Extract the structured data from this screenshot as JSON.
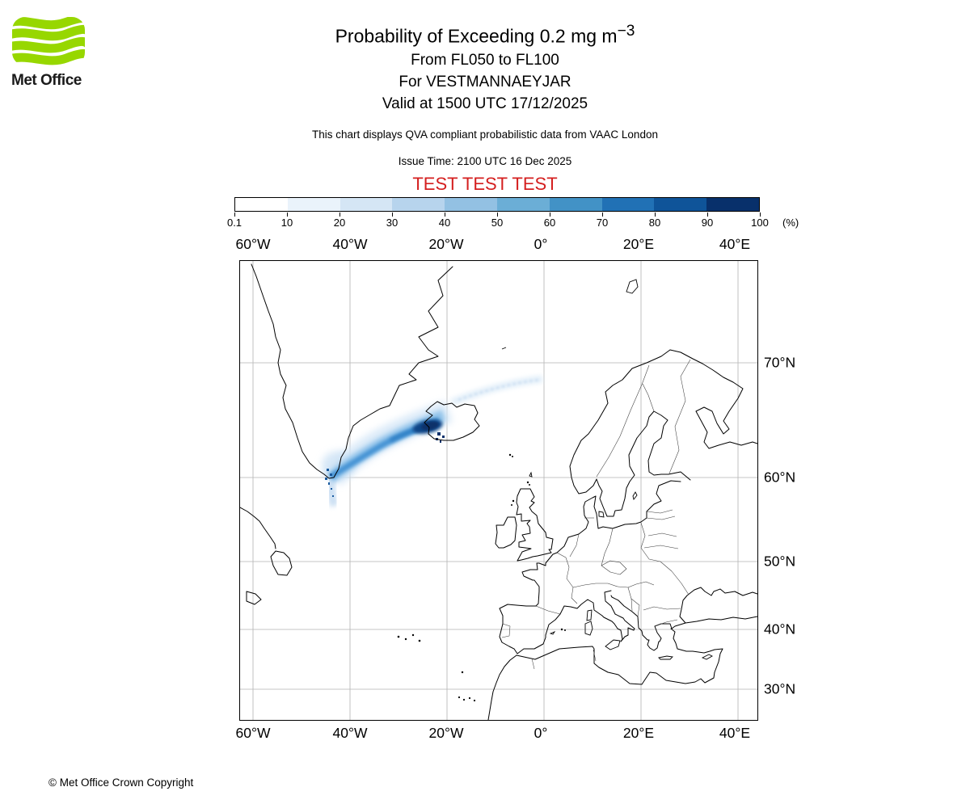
{
  "logo": {
    "text": "Met Office"
  },
  "header": {
    "title": "Probability of Exceeding 0.2 mg m",
    "title_sup": "−3",
    "line2": "From FL050 to FL100",
    "line3": "For VESTMANNAEYJAR",
    "line4": "Valid at 1500 UTC 17/12/2025",
    "qva_note": "This chart displays QVA compliant probabilistic data from VAAC London",
    "issue_time": "Issue Time: 2100 UTC 16 Dec 2025",
    "test_banner": "TEST TEST TEST"
  },
  "colorbar": {
    "tick_labels": [
      "0.1",
      "10",
      "20",
      "30",
      "40",
      "50",
      "60",
      "70",
      "80",
      "90",
      "100"
    ],
    "unit_label": "(%)",
    "segment_colors": [
      "#ffffff",
      "#eaf3fb",
      "#d5e6f5",
      "#b7d4ed",
      "#93c1e3",
      "#6baed6",
      "#4292c6",
      "#2171b5",
      "#0f5499",
      "#08306b"
    ]
  },
  "map": {
    "x_tick_labels": [
      "60°W",
      "40°W",
      "20°W",
      "0°",
      "20°E",
      "40°E"
    ],
    "y_tick_labels": [
      "70°N",
      "60°N",
      "50°N",
      "40°N",
      "30°N"
    ]
  },
  "footer": {
    "copyright_text": "© Met Office Crown Copyright"
  },
  "colors": {
    "test_banner": "#d41f1f",
    "logo_green": "#97d700",
    "plume_dark": "#08306b"
  }
}
